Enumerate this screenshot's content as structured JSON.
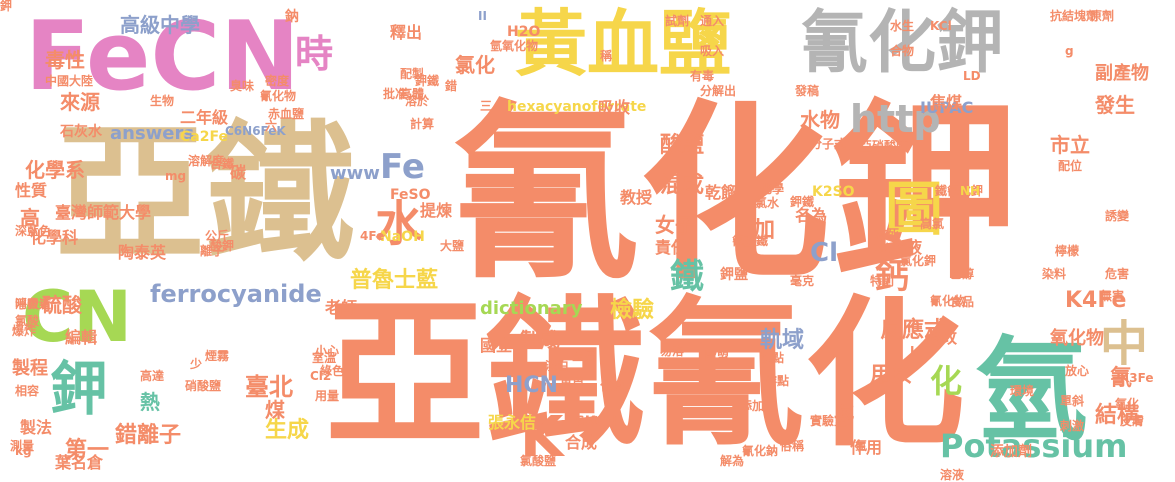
{
  "palette": {
    "salmon": "#f48c69",
    "tan": "#dcc090",
    "pink": "#e584c4",
    "gray": "#b4b4b4",
    "yellow": "#f6d64a",
    "teal": "#66c2a5",
    "blue": "#8da0cb",
    "green": "#a6d854"
  },
  "words": [
    {
      "text": "氰化鉀",
      "color": "salmon"
    },
    {
      "text": "亞鐵氰化",
      "color": "salmon"
    },
    {
      "text": "亞鐵",
      "color": "tan"
    },
    {
      "text": "FeCN",
      "color": "pink"
    },
    {
      "text": "黃血鹽",
      "color": "yellow"
    },
    {
      "text": "氰化鉀",
      "color": "gray"
    },
    {
      "text": "氫",
      "color": "teal"
    },
    {
      "text": "CN",
      "color": "green"
    },
    {
      "text": "鉀",
      "color": "teal"
    },
    {
      "text": "圖",
      "color": "yellow"
    },
    {
      "text": "水",
      "color": "salmon"
    },
    {
      "text": "K",
      "color": "salmon"
    },
    {
      "text": "中",
      "color": "tan"
    },
    {
      "text": "時",
      "color": "pink"
    },
    {
      "text": "Potassium",
      "color": "teal"
    },
    {
      "text": "http",
      "color": "gray"
    },
    {
      "text": "鐵",
      "color": "teal"
    },
    {
      "text": "鈣",
      "color": "salmon"
    },
    {
      "text": "化",
      "color": "green"
    },
    {
      "text": "Fe",
      "color": "blue"
    },
    {
      "text": "ferrocyanide",
      "color": "blue"
    },
    {
      "text": "普魯士藍",
      "color": "yellow"
    },
    {
      "text": "K4Fe",
      "color": "salmon"
    },
    {
      "text": "高級中學",
      "color": "blue"
    },
    {
      "text": "毒性",
      "color": "salmon"
    },
    {
      "text": "來源",
      "color": "salmon"
    },
    {
      "text": "發生",
      "color": "salmon"
    },
    {
      "text": "市立",
      "color": "salmon"
    },
    {
      "text": "酸鹽",
      "color": "salmon"
    },
    {
      "text": "混成",
      "color": "salmon"
    },
    {
      "text": "女子",
      "color": "salmon"
    },
    {
      "text": "水物",
      "color": "salmon"
    },
    {
      "text": "Cl",
      "color": "blue"
    },
    {
      "text": "dictionary",
      "color": "green"
    },
    {
      "text": "製成",
      "color": "salmon"
    },
    {
      "text": "軌域",
      "color": "blue"
    },
    {
      "text": "HCN",
      "color": "blue"
    },
    {
      "text": "錯離子",
      "color": "salmon"
    },
    {
      "text": "生成",
      "color": "yellow"
    },
    {
      "text": "臺北",
      "color": "salmon"
    },
    {
      "text": "熱",
      "color": "teal"
    },
    {
      "text": "第一",
      "color": "salmon"
    },
    {
      "text": "結構",
      "color": "salmon"
    },
    {
      "text": "反應式",
      "color": "salmon"
    },
    {
      "text": "檢驗",
      "color": "yellow"
    },
    {
      "text": "用於",
      "color": "salmon"
    },
    {
      "text": "氧化物",
      "color": "salmon"
    },
    {
      "text": "氰",
      "color": "salmon"
    },
    {
      "text": "answers",
      "color": "blue"
    },
    {
      "text": "氯化",
      "color": "salmon"
    },
    {
      "text": "www",
      "color": "blue"
    },
    {
      "text": "IUPAC",
      "color": "blue"
    },
    {
      "text": "Ca2Fe",
      "color": "yellow"
    },
    {
      "text": "石灰水",
      "color": "salmon"
    },
    {
      "text": "焦煤",
      "color": "salmon"
    },
    {
      "text": "副產物",
      "color": "salmon"
    },
    {
      "text": "化學系",
      "color": "salmon"
    },
    {
      "text": "臺灣師範大學",
      "color": "salmon"
    },
    {
      "text": "化學科",
      "color": "salmon"
    },
    {
      "text": "陶泰英",
      "color": "salmon"
    },
    {
      "text": "硫酸",
      "color": "salmon"
    },
    {
      "text": "編輯",
      "color": "salmon"
    },
    {
      "text": "製程",
      "color": "salmon"
    },
    {
      "text": "製法",
      "color": "salmon"
    },
    {
      "text": "葉名倉",
      "color": "salmon"
    },
    {
      "text": "張永佶",
      "color": "yellow"
    },
    {
      "text": "國立",
      "color": "salmon"
    },
    {
      "text": "水溶液",
      "color": "salmon"
    },
    {
      "text": "教授",
      "color": "salmon"
    },
    {
      "text": "乾餾",
      "color": "salmon"
    },
    {
      "text": "名為",
      "color": "salmon"
    },
    {
      "text": "鉀鹽",
      "color": "salmon"
    },
    {
      "text": "修改",
      "color": "salmon"
    },
    {
      "text": "老師",
      "color": "salmon"
    },
    {
      "text": "提煉",
      "color": "salmon"
    },
    {
      "text": "責任",
      "color": "salmon"
    },
    {
      "text": "加",
      "color": "salmon"
    },
    {
      "text": "二年級",
      "color": "salmon"
    },
    {
      "text": "K2SO",
      "color": "yellow"
    },
    {
      "text": "hexacyanoferrate",
      "color": "yellow"
    },
    {
      "text": "吸收",
      "color": "salmon"
    },
    {
      "text": "釋出",
      "color": "salmon"
    },
    {
      "text": "性質",
      "color": "salmon"
    },
    {
      "text": "高",
      "color": "salmon"
    },
    {
      "text": "煤",
      "color": "salmon"
    },
    {
      "text": "6KCN",
      "color": "salmon"
    },
    {
      "text": "合成",
      "color": "salmon"
    },
    {
      "text": "作用",
      "color": "salmon"
    },
    {
      "text": "氮",
      "color": "salmon"
    },
    {
      "text": "碳",
      "color": "salmon"
    },
    {
      "text": "鈉",
      "color": "salmon"
    },
    {
      "text": "H2O",
      "color": "salmon"
    },
    {
      "text": "FeSO",
      "color": "salmon"
    },
    {
      "text": "NaOH",
      "color": "yellow"
    },
    {
      "text": "4Fe",
      "color": "salmon"
    },
    {
      "text": "氯化鉀",
      "color": "salmon"
    },
    {
      "text": "鐵氰化鉀",
      "color": "salmon"
    },
    {
      "text": "氰化物",
      "color": "salmon"
    },
    {
      "text": "抗結塊劑",
      "color": "salmon"
    },
    {
      "text": "誘變",
      "color": "salmon"
    },
    {
      "text": "危害",
      "color": "salmon"
    },
    {
      "text": "原劑",
      "color": "salmon"
    },
    {
      "text": "放心",
      "color": "salmon"
    },
    {
      "text": "配位",
      "color": "salmon"
    },
    {
      "text": "檸檬",
      "color": "salmon"
    },
    {
      "text": "高氯",
      "color": "salmon"
    },
    {
      "text": "染料",
      "color": "salmon"
    },
    {
      "text": "K3Fe",
      "color": "salmon"
    },
    {
      "text": "無害",
      "color": "salmon"
    },
    {
      "text": "氧化",
      "color": "salmon"
    },
    {
      "text": "單斜",
      "color": "salmon"
    },
    {
      "text": "刺激",
      "color": "salmon"
    },
    {
      "text": "添加劑",
      "color": "salmon"
    },
    {
      "text": "皮膚",
      "color": "salmon"
    },
    {
      "text": "溶液",
      "color": "salmon"
    },
    {
      "text": "俗稱",
      "color": "salmon"
    },
    {
      "text": "實驗室",
      "color": "salmon"
    },
    {
      "text": "添加亞",
      "color": "salmon"
    },
    {
      "text": "熔點",
      "color": "salmon"
    },
    {
      "text": "沸點",
      "color": "salmon"
    },
    {
      "text": "氰化鈉",
      "color": "salmon"
    },
    {
      "text": "歐盟",
      "color": "salmon"
    },
    {
      "text": "易溶",
      "color": "salmon"
    },
    {
      "text": "化鐵",
      "color": "salmon"
    },
    {
      "text": "黃色",
      "color": "salmon"
    },
    {
      "text": "淡白",
      "color": "salmon"
    },
    {
      "text": "金屬",
      "color": "salmon"
    },
    {
      "text": "大鹽",
      "color": "salmon"
    },
    {
      "text": "深藍色",
      "color": "salmon"
    },
    {
      "text": "消費者",
      "color": "salmon"
    },
    {
      "text": "爆炸",
      "color": "salmon"
    },
    {
      "text": "呼吸道",
      "color": "salmon"
    },
    {
      "text": "氯酸",
      "color": "salmon"
    },
    {
      "text": "中國大陸",
      "color": "salmon"
    },
    {
      "text": "生物",
      "color": "salmon"
    },
    {
      "text": "赤血鹽",
      "color": "salmon"
    },
    {
      "text": "密度",
      "color": "salmon"
    },
    {
      "text": "臭味",
      "color": "salmon"
    },
    {
      "text": "環境",
      "color": "salmon"
    },
    {
      "text": "計算",
      "color": "salmon"
    },
    {
      "text": "批准",
      "color": "salmon"
    },
    {
      "text": "配製",
      "color": "salmon"
    },
    {
      "text": "溶於",
      "color": "salmon"
    },
    {
      "text": "C6N6FeK",
      "color": "blue"
    },
    {
      "text": "分子式",
      "color": "salmon"
    },
    {
      "text": "亞硝酸鹽",
      "color": "salmon"
    },
    {
      "text": "鉀鐵",
      "color": "salmon"
    },
    {
      "text": "氰亞鐵",
      "color": "salmon"
    },
    {
      "text": "致死",
      "color": "salmon"
    },
    {
      "text": "特別",
      "color": "salmon"
    },
    {
      "text": "毫克",
      "color": "salmon"
    },
    {
      "text": "乙醇",
      "color": "salmon"
    },
    {
      "text": "食品",
      "color": "salmon"
    },
    {
      "text": "化學",
      "color": "salmon"
    },
    {
      "text": "氯水",
      "color": "salmon"
    },
    {
      "text": "合鐵",
      "color": "salmon"
    },
    {
      "text": "公斤",
      "color": "salmon"
    },
    {
      "text": "酸鉀",
      "color": "salmon"
    },
    {
      "text": "Cl2",
      "color": "salmon"
    },
    {
      "text": "室溫",
      "color": "salmon"
    },
    {
      "text": "小心",
      "color": "salmon"
    },
    {
      "text": "用量",
      "color": "salmon"
    },
    {
      "text": "綠色",
      "color": "salmon"
    },
    {
      "text": "硝酸鹽",
      "color": "salmon"
    },
    {
      "text": "高達",
      "color": "salmon"
    },
    {
      "text": "相容",
      "color": "salmon"
    },
    {
      "text": "測量",
      "color": "salmon"
    },
    {
      "text": "氯酸鹽",
      "color": "salmon"
    },
    {
      "text": "解為",
      "color": "salmon"
    },
    {
      "text": "煙霧",
      "color": "salmon"
    },
    {
      "text": "kg",
      "color": "salmon"
    },
    {
      "text": "mg",
      "color": "salmon"
    },
    {
      "text": "LD",
      "color": "salmon"
    },
    {
      "text": "NH",
      "color": "yellow"
    },
    {
      "text": "KCl",
      "color": "salmon"
    },
    {
      "text": "水生",
      "color": "salmon"
    },
    {
      "text": "合物",
      "color": "salmon"
    },
    {
      "text": "通入",
      "color": "salmon"
    },
    {
      "text": "試劑",
      "color": "salmon"
    },
    {
      "text": "發稿",
      "color": "salmon"
    },
    {
      "text": "有毒",
      "color": "salmon"
    },
    {
      "text": "分解出",
      "color": "salmon"
    },
    {
      "text": "氫氧化物",
      "color": "salmon"
    },
    {
      "text": "錯",
      "color": "salmon"
    },
    {
      "text": "鉀鐵",
      "color": "salmon"
    },
    {
      "text": "高體",
      "color": "salmon"
    },
    {
      "text": "溶解度",
      "color": "salmon"
    },
    {
      "text": "離子",
      "color": "salmon"
    },
    {
      "text": "六",
      "color": "salmon"
    },
    {
      "text": "氰化物",
      "color": "salmon"
    },
    {
      "text": "II",
      "color": "blue"
    },
    {
      "text": "g",
      "color": "salmon"
    },
    {
      "text": "L",
      "color": "salmon"
    },
    {
      "text": "氯",
      "color": "salmon"
    },
    {
      "text": "少",
      "color": "salmon"
    },
    {
      "text": "三",
      "color": "salmon"
    },
    {
      "text": "稱",
      "color": "salmon"
    },
    {
      "text": "吸入",
      "color": "salmon"
    },
    {
      "text": "鉀",
      "color": "salmon"
    }
  ]
}
